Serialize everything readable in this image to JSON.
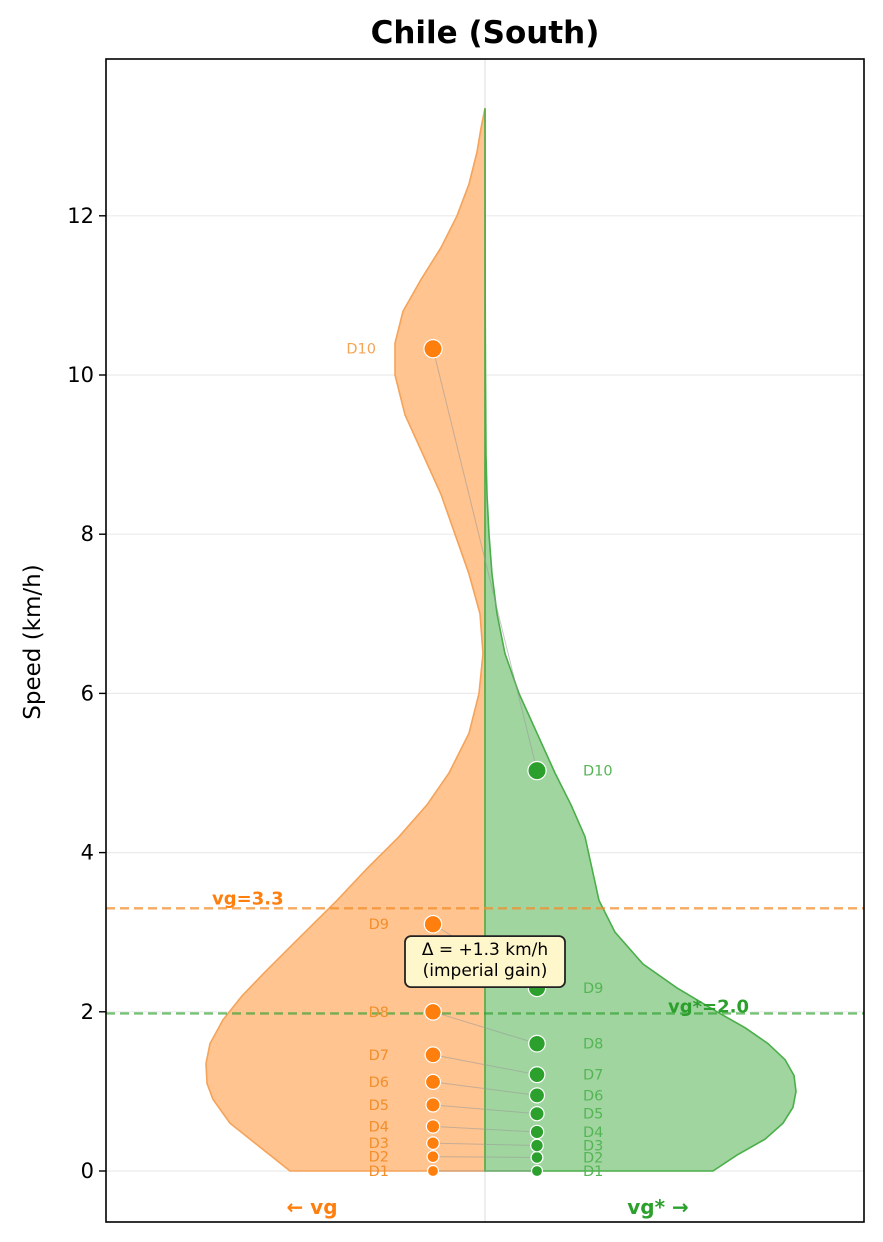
{
  "chart_data": {
    "type": "violin",
    "title": "Chile (South)",
    "xlabel": "",
    "ylabel": "Speed (km/h)",
    "ylim": [
      -0.65,
      14
    ],
    "yticks": [
      "0",
      "2",
      "4",
      "6",
      "8",
      "10",
      "12"
    ],
    "grid": true,
    "series": [
      {
        "name": "vg",
        "side_label": "← vg",
        "color": "#ff7f0e",
        "fill": "#ffc48f",
        "labels": [
          "D1",
          "D2",
          "D3",
          "D4",
          "D5",
          "D6",
          "D7",
          "D8",
          "D9",
          "D10"
        ],
        "values": [
          0.0,
          0.18,
          0.35,
          0.56,
          0.83,
          1.12,
          1.46,
          2.0,
          3.1,
          10.33
        ],
        "reference_label": "vg=3.3",
        "reference_value": 3.3
      },
      {
        "name": "vg*",
        "side_label": "vg* →",
        "color": "#2ca02c",
        "fill": "#a0d59f",
        "labels": [
          "D1",
          "D2",
          "D3",
          "D4",
          "D5",
          "D6",
          "D7",
          "D8",
          "D9",
          "D10"
        ],
        "values": [
          0.0,
          0.17,
          0.32,
          0.49,
          0.72,
          0.95,
          1.21,
          1.6,
          2.3,
          5.03
        ],
        "reference_label": "vg*=2.0",
        "reference_value": 1.98
      }
    ],
    "annotation": {
      "line1": "Δ = +1.3 km/h",
      "line2": "(imperial gain)",
      "value": 2.65
    }
  }
}
